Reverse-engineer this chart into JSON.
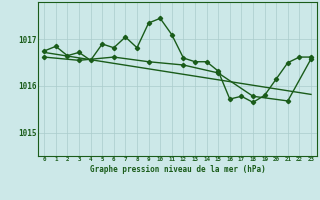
{
  "title": "Graphe pression niveau de la mer (hPa)",
  "bg_color": "#cce8e8",
  "grid_color": "#aacccc",
  "line_color": "#1a5c1a",
  "xlim": [
    -0.5,
    23.5
  ],
  "ylim": [
    1014.5,
    1017.8
  ],
  "yticks": [
    1015,
    1016,
    1017
  ],
  "xticks": [
    0,
    1,
    2,
    3,
    4,
    5,
    6,
    7,
    8,
    9,
    10,
    11,
    12,
    13,
    14,
    15,
    16,
    17,
    18,
    19,
    20,
    21,
    22,
    23
  ],
  "series1_x": [
    0,
    1,
    2,
    3,
    4,
    5,
    6,
    7,
    8,
    9,
    10,
    11,
    12,
    13,
    14,
    15,
    16,
    17,
    18,
    19,
    20,
    21,
    22,
    23
  ],
  "series1_y": [
    1016.75,
    1016.85,
    1016.65,
    1016.72,
    1016.55,
    1016.9,
    1016.82,
    1017.05,
    1016.82,
    1017.35,
    1017.45,
    1017.1,
    1016.6,
    1016.52,
    1016.52,
    1016.32,
    1015.72,
    1015.78,
    1015.65,
    1015.8,
    1016.15,
    1016.5,
    1016.62,
    1016.62
  ],
  "series2_x": [
    0,
    3,
    6,
    9,
    12,
    15,
    18,
    21,
    23
  ],
  "series2_y": [
    1016.62,
    1016.55,
    1016.62,
    1016.52,
    1016.45,
    1016.28,
    1015.78,
    1015.68,
    1016.58
  ],
  "series3_x": [
    0,
    23
  ],
  "series3_y": [
    1016.72,
    1015.82
  ]
}
